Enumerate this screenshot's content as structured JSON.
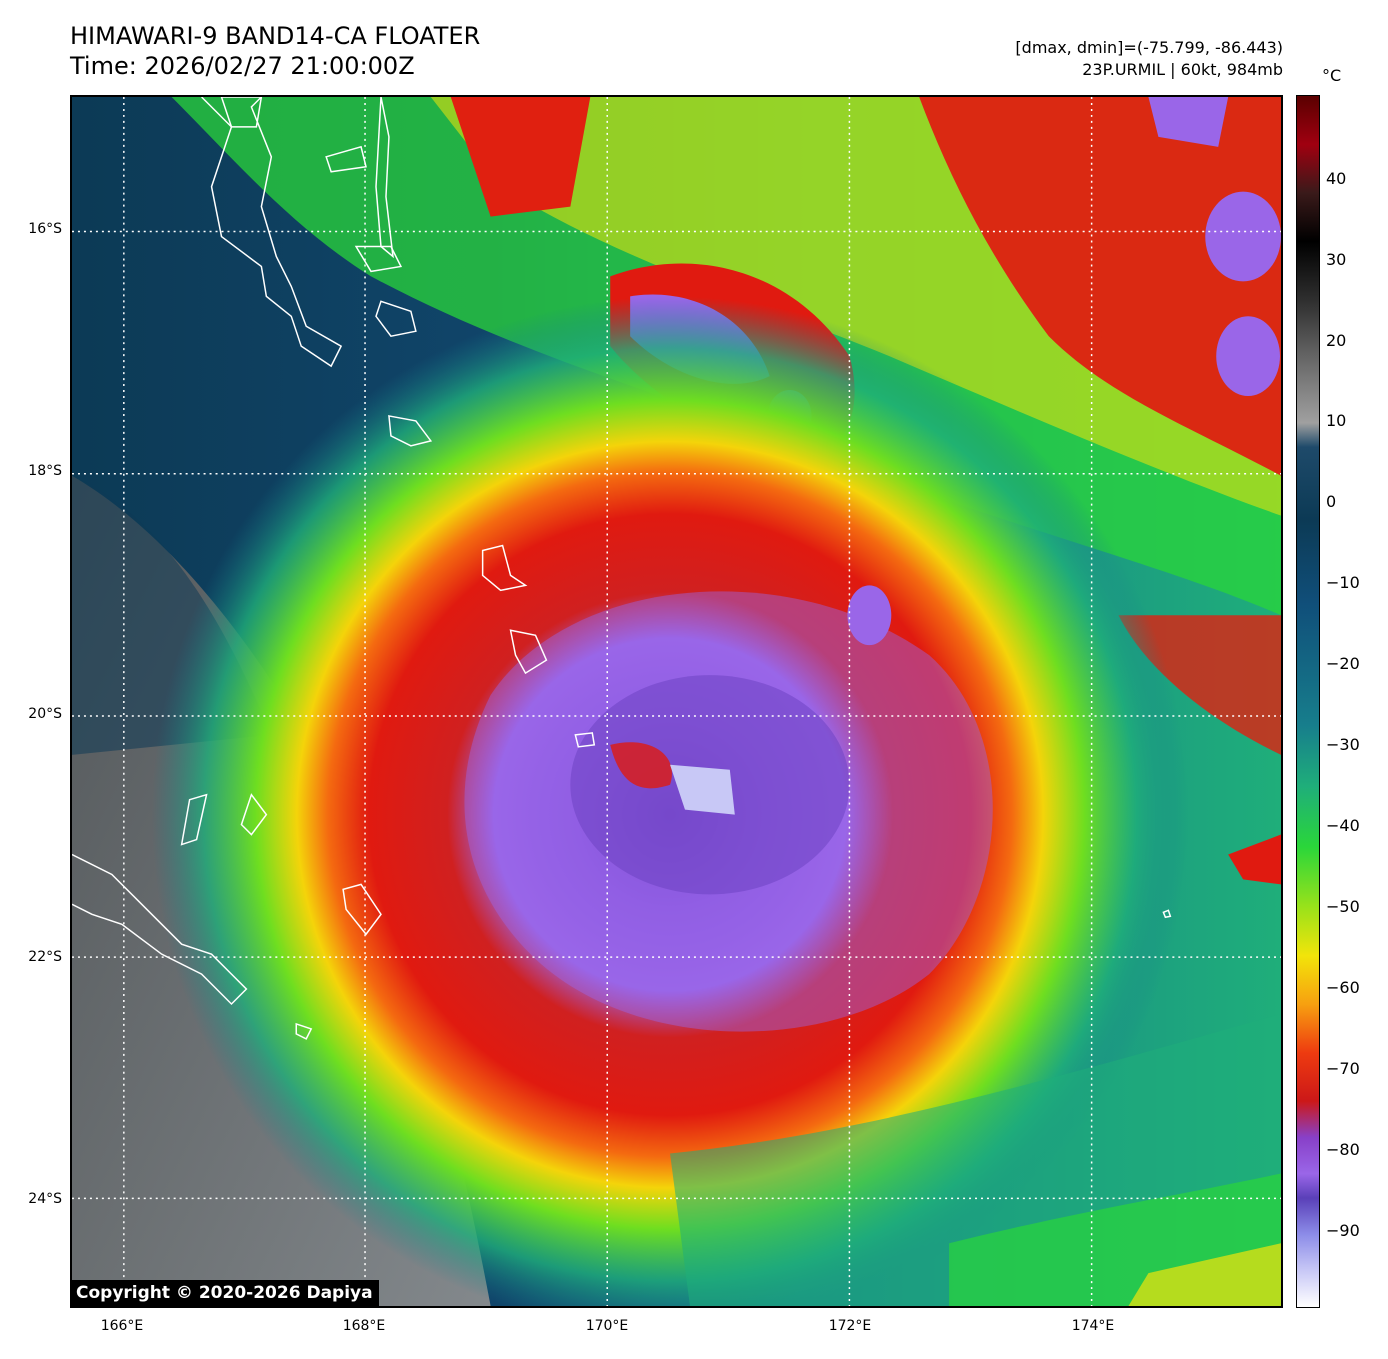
{
  "header": {
    "title_line1": "HIMAWARI-9 BAND14-CA FLOATER",
    "title_line2": "Time: 2026/02/27 21:00:00Z",
    "info_line1": "[dmax, dmin]=(-75.799, -86.443)",
    "info_line2": "23P.URMIL | 60kt, 984mb"
  },
  "map": {
    "lat_labels": [
      "16°S",
      "18°S",
      "20°S",
      "22°S",
      "24°S"
    ],
    "lon_labels": [
      "166°E",
      "168°E",
      "170°E",
      "172°E",
      "174°E"
    ],
    "grid_style": "dotted white"
  },
  "colorbar": {
    "unit": "°C",
    "ticks": [
      "40",
      "30",
      "20",
      "10",
      "0",
      "−10",
      "−20",
      "−30",
      "−40",
      "−50",
      "−60",
      "−70",
      "−80",
      "−90"
    ]
  },
  "footer": {
    "copyright": "Copyright © 2020-2026 Dapiya"
  },
  "colors": {
    "cold_top": "#9a66e8",
    "ring": "#e01a10",
    "ocean": "#0c3a55",
    "land": "#808080"
  }
}
